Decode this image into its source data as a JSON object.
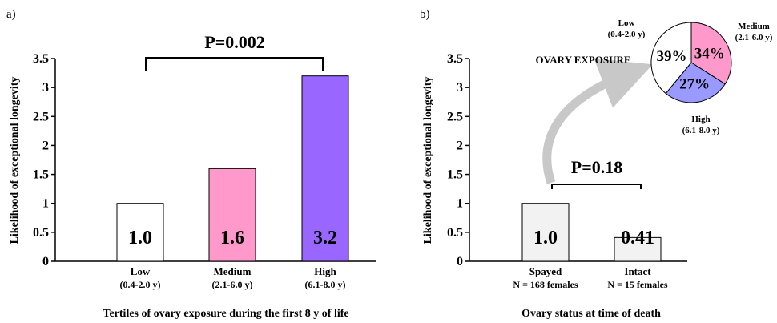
{
  "chart_data": [
    {
      "type": "bar",
      "panel": "a)",
      "ylabel": "Likelihood of exceptional longevity",
      "xlabel": "Tertiles of ovary exposure during the first 8 y of life",
      "ylim": [
        0,
        3.5
      ],
      "yticks": [
        "0",
        "0.5",
        "1",
        "1.5",
        "2",
        "2.5",
        "3",
        "3.5"
      ],
      "categories": [
        "Low",
        "Medium",
        "High"
      ],
      "sublabels": [
        "(0.4-2.0 y)",
        "(2.1-6.0 y)",
        "(6.1-8.0 y)"
      ],
      "values": [
        1.0,
        1.6,
        3.2
      ],
      "data_labels": [
        "1.0",
        "1.6",
        "3.2"
      ],
      "colors": [
        "#ffffff",
        "#ff99cc",
        "#9966ff"
      ],
      "annotation": "P=0.002"
    },
    {
      "type": "bar",
      "panel": "b)",
      "ylabel": "Likelihood of exceptional longevity",
      "xlabel": "Ovary status at time of death",
      "ylim": [
        0,
        3.5
      ],
      "yticks": [
        "0",
        "0.5",
        "1",
        "1.5",
        "2",
        "2.5",
        "3",
        "3.5"
      ],
      "categories": [
        "Spayed",
        "Intact"
      ],
      "sublabels": [
        "N = 168 females",
        "N = 15 females"
      ],
      "values": [
        1.0,
        0.41
      ],
      "data_labels": [
        "1.0",
        "0.41"
      ],
      "colors": [
        "#f2f2f2",
        "#f2f2f2"
      ],
      "annotation": "P=0.18"
    },
    {
      "type": "pie",
      "title": "OVARY EXPOSURE",
      "slices": [
        {
          "label": "Low",
          "sub": "(0.4-2.0 y)",
          "value": 39,
          "pct_label": "39%",
          "color": "#ffffff"
        },
        {
          "label": "Medium",
          "sub": "(2.1-6.0 y)",
          "value": 34,
          "pct_label": "34%",
          "color": "#ff99cc"
        },
        {
          "label": "High",
          "sub": "(6.1-8.0 y)",
          "value": 27,
          "pct_label": "27%",
          "color": "#9999ff"
        }
      ]
    }
  ]
}
